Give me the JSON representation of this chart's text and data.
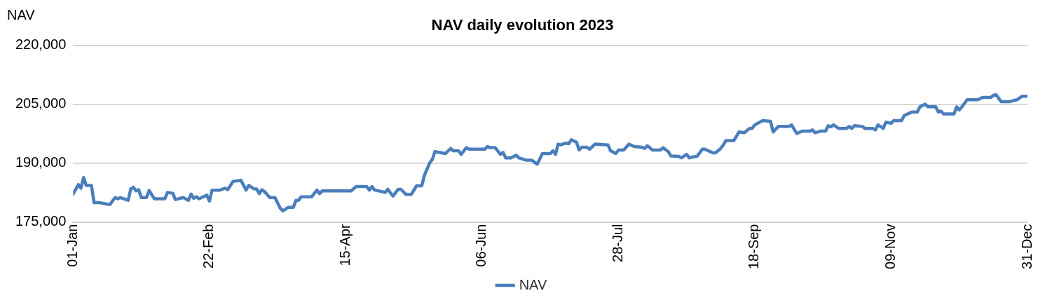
{
  "chart_data": {
    "type": "line",
    "title": "NAV daily evolution 2023",
    "ylabel": "NAV",
    "legend": "bottom",
    "grid": "y",
    "marker": "none",
    "line_style": "solid",
    "xlim": [
      "2023-01-01",
      "2023-12-31"
    ],
    "xticks": [
      {
        "value": "2023-01-01",
        "label": "01-Jan"
      },
      {
        "value": "2023-02-22",
        "label": "22-Feb"
      },
      {
        "value": "2023-04-15",
        "label": "15-Apr"
      },
      {
        "value": "2023-06-06",
        "label": "06-Jun"
      },
      {
        "value": "2023-07-28",
        "label": "28-Jul"
      },
      {
        "value": "2023-09-18",
        "label": "18-Sep"
      },
      {
        "value": "2023-11-09",
        "label": "09-Nov"
      },
      {
        "value": "2023-12-31",
        "label": "31-Dec"
      }
    ],
    "ylim": [
      175000,
      220000
    ],
    "yticks": [
      {
        "value": 175000,
        "label": "175,000"
      },
      {
        "value": 190000,
        "label": "190,000"
      },
      {
        "value": 205000,
        "label": "205,000"
      },
      {
        "value": 220000,
        "label": "220,000"
      }
    ],
    "x": [
      "2023-01-01",
      "2023-01-03",
      "2023-01-04",
      "2023-01-05",
      "2023-01-06",
      "2023-01-08",
      "2023-01-09",
      "2023-01-11",
      "2023-01-15",
      "2023-01-17",
      "2023-01-18",
      "2023-01-19",
      "2023-01-22",
      "2023-01-23",
      "2023-01-24",
      "2023-01-25",
      "2023-01-26",
      "2023-01-27",
      "2023-01-29",
      "2023-01-30",
      "2023-02-01",
      "2023-02-05",
      "2023-02-06",
      "2023-02-08",
      "2023-02-09",
      "2023-02-12",
      "2023-02-14",
      "2023-02-15",
      "2023-02-16",
      "2023-02-17",
      "2023-02-18",
      "2023-02-21",
      "2023-02-22",
      "2023-02-23",
      "2023-02-26",
      "2023-02-28",
      "2023-03-01",
      "2023-03-03",
      "2023-03-06",
      "2023-03-08",
      "2023-03-09",
      "2023-03-11",
      "2023-03-12",
      "2023-03-13",
      "2023-03-14",
      "2023-03-15",
      "2023-03-17",
      "2023-03-19",
      "2023-03-21",
      "2023-03-22",
      "2023-03-24",
      "2023-03-26",
      "2023-03-27",
      "2023-03-28",
      "2023-03-29",
      "2023-04-02",
      "2023-04-04",
      "2023-04-05",
      "2023-04-06",
      "2023-04-17",
      "2023-04-19",
      "2023-04-23",
      "2023-04-24",
      "2023-04-25",
      "2023-04-26",
      "2023-04-29",
      "2023-04-30",
      "2023-05-01",
      "2023-05-03",
      "2023-05-05",
      "2023-05-06",
      "2023-05-08",
      "2023-05-10",
      "2023-05-12",
      "2023-05-14",
      "2023-05-15",
      "2023-05-17",
      "2023-05-18",
      "2023-05-19",
      "2023-05-23",
      "2023-05-25",
      "2023-05-26",
      "2023-05-28",
      "2023-05-29",
      "2023-05-31",
      "2023-06-01",
      "2023-06-07",
      "2023-06-08",
      "2023-06-09",
      "2023-06-11",
      "2023-06-13",
      "2023-06-14",
      "2023-06-15",
      "2023-06-17",
      "2023-06-19",
      "2023-06-20",
      "2023-06-23",
      "2023-06-25",
      "2023-06-27",
      "2023-06-29",
      "2023-07-02",
      "2023-07-03",
      "2023-07-04",
      "2023-07-05",
      "2023-07-06",
      "2023-07-08",
      "2023-07-09",
      "2023-07-10",
      "2023-07-12",
      "2023-07-13",
      "2023-07-14",
      "2023-07-16",
      "2023-07-17",
      "2023-07-19",
      "2023-07-24",
      "2023-07-25",
      "2023-07-27",
      "2023-07-28",
      "2023-07-30",
      "2023-08-01",
      "2023-08-03",
      "2023-08-06",
      "2023-08-07",
      "2023-08-08",
      "2023-08-10",
      "2023-08-13",
      "2023-08-14",
      "2023-08-16",
      "2023-08-17",
      "2023-08-20",
      "2023-08-21",
      "2023-08-23",
      "2023-08-24",
      "2023-08-25",
      "2023-08-27",
      "2023-08-29",
      "2023-08-30",
      "2023-09-02",
      "2023-09-03",
      "2023-09-05",
      "2023-09-06",
      "2023-09-07",
      "2023-09-10",
      "2023-09-12",
      "2023-09-14",
      "2023-09-16",
      "2023-09-17",
      "2023-09-18",
      "2023-09-21",
      "2023-09-24",
      "2023-09-25",
      "2023-09-27",
      "2023-10-01",
      "2023-10-02",
      "2023-10-04",
      "2023-10-06",
      "2023-10-09",
      "2023-10-10",
      "2023-10-11",
      "2023-10-13",
      "2023-10-15",
      "2023-10-16",
      "2023-10-17",
      "2023-10-18",
      "2023-10-20",
      "2023-10-23",
      "2023-10-24",
      "2023-10-25",
      "2023-10-26",
      "2023-10-29",
      "2023-10-30",
      "2023-11-02",
      "2023-11-03",
      "2023-11-04",
      "2023-11-06",
      "2023-11-07",
      "2023-11-09",
      "2023-11-10",
      "2023-11-13",
      "2023-11-14",
      "2023-11-17",
      "2023-11-19",
      "2023-11-20",
      "2023-11-22",
      "2023-11-23",
      "2023-11-26",
      "2023-11-27",
      "2023-11-28",
      "2023-11-29",
      "2023-12-03",
      "2023-12-04",
      "2023-12-05",
      "2023-12-06",
      "2023-12-08",
      "2023-12-12",
      "2023-12-14",
      "2023-12-17",
      "2023-12-18",
      "2023-12-19",
      "2023-12-21",
      "2023-12-24",
      "2023-12-27",
      "2023-12-29",
      "2023-12-31"
    ],
    "series": [
      {
        "name": "NAV",
        "color": "#4a7ebb",
        "values": [
          182100,
          184500,
          183600,
          186300,
          184300,
          184300,
          179900,
          179900,
          179400,
          181200,
          180900,
          181200,
          180500,
          183400,
          183800,
          182900,
          183200,
          181200,
          181200,
          183000,
          180900,
          180900,
          182500,
          182300,
          180700,
          181200,
          180500,
          182100,
          181000,
          181400,
          180900,
          181800,
          180300,
          183100,
          183100,
          183600,
          183200,
          185300,
          185600,
          183100,
          184300,
          183400,
          183400,
          182200,
          183200,
          182700,
          181200,
          181200,
          178500,
          177800,
          178700,
          178700,
          180500,
          180500,
          181400,
          181400,
          183100,
          182200,
          182900,
          182900,
          184000,
          184000,
          183100,
          184000,
          183100,
          182700,
          182500,
          183300,
          181600,
          183300,
          183300,
          182000,
          182000,
          184200,
          184200,
          186900,
          190000,
          190900,
          192900,
          192400,
          193700,
          193100,
          193100,
          192200,
          193900,
          193500,
          193500,
          194200,
          193900,
          193900,
          192200,
          192700,
          191300,
          191300,
          192000,
          191300,
          190700,
          190700,
          189700,
          192400,
          192400,
          193100,
          192200,
          194800,
          194600,
          195100,
          194900,
          195900,
          195300,
          193300,
          194000,
          194000,
          193500,
          194800,
          194600,
          193100,
          192400,
          193300,
          193300,
          194800,
          194200,
          194000,
          193700,
          194400,
          193300,
          193300,
          193900,
          192900,
          191800,
          191700,
          191300,
          192200,
          191300,
          191500,
          191700,
          193500,
          193500,
          192600,
          192600,
          193700,
          194600,
          195700,
          195700,
          197900,
          197700,
          198800,
          198800,
          199700,
          200800,
          200600,
          197900,
          199300,
          199300,
          199700,
          197500,
          198100,
          198100,
          198400,
          197700,
          198100,
          198100,
          199500,
          199200,
          199700,
          198800,
          198800,
          199300,
          198800,
          199500,
          199300,
          198800,
          198800,
          198400,
          199700,
          198800,
          200400,
          200100,
          200800,
          200800,
          202100,
          203000,
          203000,
          204300,
          205000,
          204300,
          204300,
          203000,
          203200,
          202500,
          202500,
          204300,
          203500,
          204300,
          206100,
          206100,
          206700,
          206700,
          207200,
          207400,
          205600,
          205600,
          206100,
          207000,
          207000
        ]
      }
    ]
  }
}
